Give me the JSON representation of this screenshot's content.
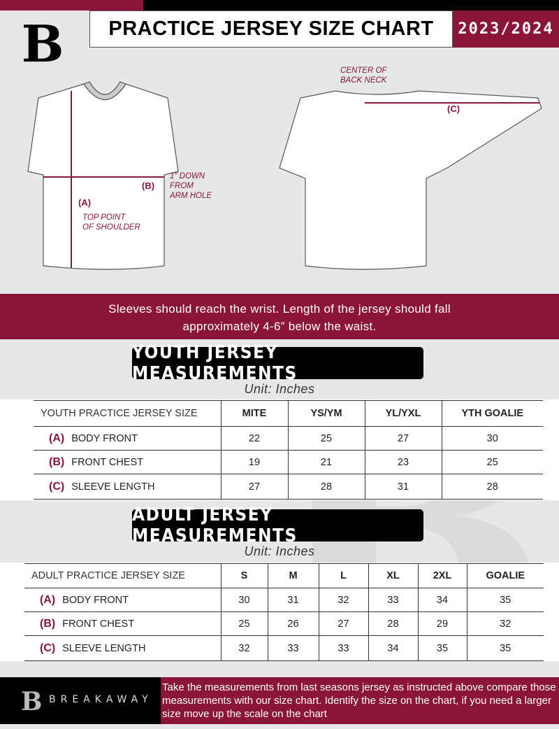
{
  "header": {
    "title": "PRACTICE JERSEY SIZE CHART",
    "season": "2023/2024",
    "logo_letter": "B"
  },
  "diagram": {
    "center_back_neck": "CENTER OF\nBACK NECK",
    "label_a": "(A)",
    "label_b": "(B)",
    "label_c": "(C)",
    "arm_hole_note": "1\" DOWN\nFROM\nARM HOLE",
    "shoulder_note": "TOP POINT\nOF SHOULDER"
  },
  "banner": {
    "line1": "Sleeves should reach the wrist. Length of the jersey should fall",
    "line2": "approximately 4-6” below the waist."
  },
  "youth": {
    "title": "YOUTH JERSEY MEASUREMENTS",
    "unit": "Unit: Inches",
    "headers": [
      "YOUTH PRACTICE JERSEY SIZE",
      "MITE",
      "YS/YM",
      "YL/YXL",
      "YTH GOALIE"
    ],
    "rows": [
      {
        "key": "(A)",
        "label": "BODY FRONT",
        "values": [
          "22",
          "25",
          "27",
          "30"
        ]
      },
      {
        "key": "(B)",
        "label": "FRONT CHEST",
        "values": [
          "19",
          "21",
          "23",
          "25"
        ]
      },
      {
        "key": "(C)",
        "label": "SLEEVE LENGTH",
        "values": [
          "27",
          "28",
          "31",
          "28"
        ]
      }
    ]
  },
  "adult": {
    "title": "ADULT JERSEY MEASUREMENTS",
    "unit": "Unit: Inches",
    "headers": [
      "ADULT PRACTICE JERSEY SIZE",
      "S",
      "M",
      "L",
      "XL",
      "2XL",
      "GOALIE"
    ],
    "rows": [
      {
        "key": "(A)",
        "label": "BODY FRONT",
        "values": [
          "30",
          "31",
          "32",
          "33",
          "34",
          "35"
        ]
      },
      {
        "key": "(B)",
        "label": "FRONT CHEST",
        "values": [
          "25",
          "26",
          "27",
          "28",
          "29",
          "32"
        ]
      },
      {
        "key": "(C)",
        "label": "SLEEVE LENGTH",
        "values": [
          "32",
          "33",
          "33",
          "34",
          "35",
          "35"
        ]
      }
    ]
  },
  "footer": {
    "brand": "BREAKAWAY",
    "text": "Take the measurements from last seasons jersey as instructed above compare those measurements  with our size chart. Identify the size on the chart, if you need a larger size move up the scale on the chart"
  },
  "colors": {
    "accent": "#8a1538",
    "background": "#e6e7e8"
  }
}
